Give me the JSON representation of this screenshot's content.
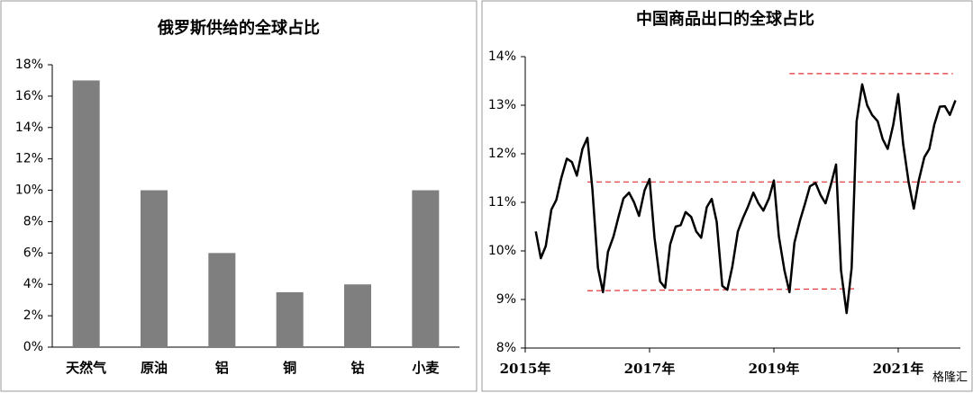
{
  "chart_data": [
    {
      "type": "bar",
      "title": "俄罗斯供给的全球占比",
      "categories": [
        "天然气",
        "原油",
        "铝",
        "铜",
        "钴",
        "小麦"
      ],
      "values": [
        17,
        10,
        6,
        3.5,
        4,
        10
      ],
      "color": "#7f7f7f",
      "ylim": [
        0,
        18
      ],
      "yticks": [
        {
          "value": 0,
          "label": "0%"
        },
        {
          "value": 2,
          "label": "2%"
        },
        {
          "value": 4,
          "label": "4%"
        },
        {
          "value": 6,
          "label": "6%"
        },
        {
          "value": 8,
          "label": "8%"
        },
        {
          "value": 10,
          "label": "10%"
        },
        {
          "value": 12,
          "label": "12%"
        },
        {
          "value": 14,
          "label": "14%"
        },
        {
          "value": 16,
          "label": "16%"
        },
        {
          "value": 18,
          "label": "18%"
        }
      ],
      "grid": false
    },
    {
      "type": "line",
      "title": "中国商品出口的全球占比",
      "x": [
        2015.17,
        2015.25,
        2015.33,
        2015.42,
        2015.5,
        2015.58,
        2015.67,
        2015.75,
        2015.83,
        2015.92,
        2016,
        2016.08,
        2016.17,
        2016.25,
        2016.33,
        2016.42,
        2016.5,
        2016.58,
        2016.67,
        2016.75,
        2016.83,
        2016.92,
        2017,
        2017.08,
        2017.17,
        2017.25,
        2017.33,
        2017.42,
        2017.5,
        2017.58,
        2017.67,
        2017.75,
        2017.83,
        2017.92,
        2018,
        2018.08,
        2018.17,
        2018.25,
        2018.33,
        2018.42,
        2018.5,
        2018.58,
        2018.67,
        2018.75,
        2018.83,
        2018.92,
        2019,
        2019.08,
        2019.17,
        2019.25,
        2019.33,
        2019.42,
        2019.5,
        2019.58,
        2019.67,
        2019.75,
        2019.83,
        2019.92,
        2020,
        2020.08,
        2020.17,
        2020.25,
        2020.33,
        2020.42,
        2020.5,
        2020.58,
        2020.67,
        2020.75,
        2020.83,
        2020.92,
        2021,
        2021.08,
        2021.17,
        2021.25,
        2021.33,
        2021.42,
        2021.5,
        2021.58,
        2021.67,
        2021.75,
        2021.83,
        2021.92
      ],
      "series": [
        {
          "color": "#000000",
          "values": [
            10.4,
            9.85,
            10.1,
            10.85,
            11.05,
            11.5,
            11.9,
            11.83,
            11.55,
            12.1,
            12.33,
            11.28,
            9.65,
            9.15,
            9.98,
            10.3,
            10.7,
            11.08,
            11.2,
            11.0,
            10.72,
            11.25,
            11.48,
            10.27,
            9.37,
            9.24,
            10.13,
            10.5,
            10.53,
            10.8,
            10.7,
            10.4,
            10.27,
            10.9,
            11.07,
            10.6,
            9.28,
            9.2,
            9.67,
            10.4,
            10.67,
            10.9,
            11.2,
            10.98,
            10.83,
            11.08,
            11.45,
            10.3,
            9.6,
            9.15,
            10.17,
            10.63,
            10.97,
            11.33,
            11.4,
            11.15,
            10.98,
            11.38,
            11.78,
            9.6,
            8.72,
            9.65,
            12.67,
            13.43,
            13.0,
            12.8,
            12.67,
            12.3,
            12.1,
            12.6,
            13.23,
            12.2,
            11.4,
            10.87,
            11.45,
            11.93,
            12.1,
            12.6,
            12.97,
            12.98,
            12.8,
            13.1
          ]
        }
      ],
      "xlim": [
        2015,
        2022
      ],
      "xticks": [
        {
          "value": 2015,
          "label": "2015年"
        },
        {
          "value": 2017,
          "label": "2017年"
        },
        {
          "value": 2019,
          "label": "2019年"
        },
        {
          "value": 2021,
          "label": "2021年"
        }
      ],
      "ylim": [
        8,
        14
      ],
      "yticks": [
        {
          "value": 8,
          "label": "8%"
        },
        {
          "value": 9,
          "label": "9%"
        },
        {
          "value": 10,
          "label": "10%"
        },
        {
          "value": 11,
          "label": "11%"
        },
        {
          "value": 12,
          "label": "12%"
        },
        {
          "value": 13,
          "label": "13%"
        },
        {
          "value": 14,
          "label": "14%"
        }
      ],
      "reference_lines": [
        {
          "y": [
            11.42,
            11.42
          ],
          "x": [
            2016,
            2022
          ]
        },
        {
          "y": [
            9.18,
            9.22
          ],
          "x": [
            2016,
            2020.35
          ]
        },
        {
          "y": [
            13.65,
            13.65
          ],
          "x": [
            2019.25,
            2021.88
          ]
        }
      ],
      "reference_color": "#e03030",
      "watermark": "格隆汇"
    }
  ]
}
